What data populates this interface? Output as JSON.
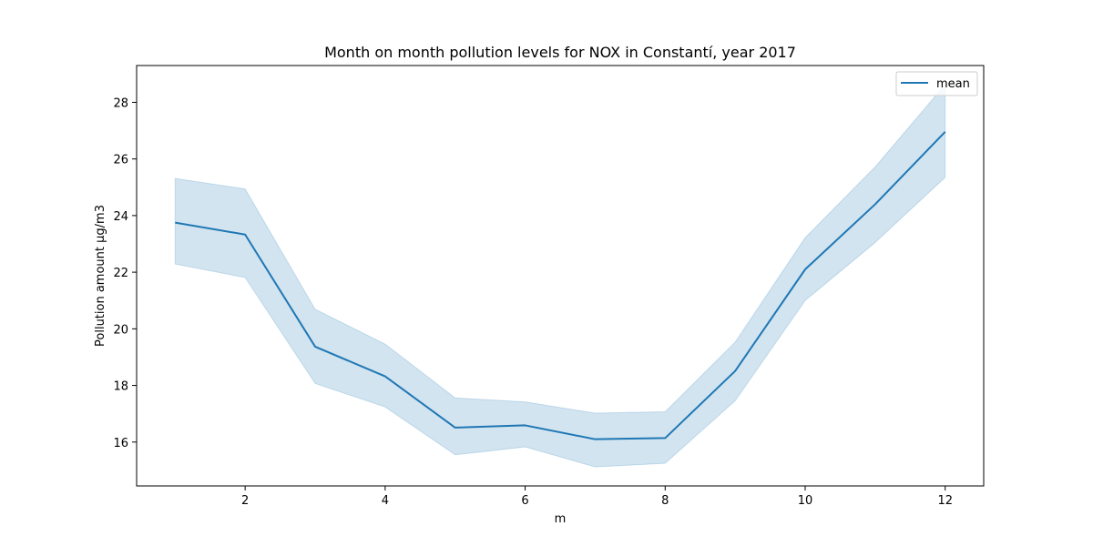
{
  "chart_data": {
    "type": "line",
    "title": "Month on month pollution levels for NOX in Constantí, year 2017",
    "xlabel": "m",
    "ylabel": "Pollution amount µg/m3",
    "xlim": [
      0.45,
      12.55
    ],
    "ylim": [
      14.45,
      29.3
    ],
    "x_ticks": [
      2,
      4,
      6,
      8,
      10,
      12
    ],
    "y_ticks": [
      16,
      18,
      20,
      22,
      24,
      26,
      28
    ],
    "grid": false,
    "legend_position": "top-right",
    "series": [
      {
        "name": "mean",
        "color": "#1f77b4",
        "x": [
          1,
          2,
          3,
          4,
          5,
          6,
          7,
          8,
          9,
          10,
          11,
          12
        ],
        "values": [
          23.75,
          23.33,
          19.37,
          18.32,
          16.51,
          16.59,
          16.1,
          16.14,
          18.51,
          22.1,
          24.4,
          26.96
        ],
        "band_lower": [
          22.29,
          21.81,
          18.07,
          17.24,
          15.55,
          15.83,
          15.12,
          15.25,
          17.46,
          21.0,
          23.05,
          25.35
        ],
        "band_upper": [
          25.31,
          24.94,
          20.69,
          19.46,
          17.56,
          17.42,
          17.02,
          17.07,
          19.53,
          23.22,
          25.72,
          28.63
        ]
      }
    ]
  }
}
